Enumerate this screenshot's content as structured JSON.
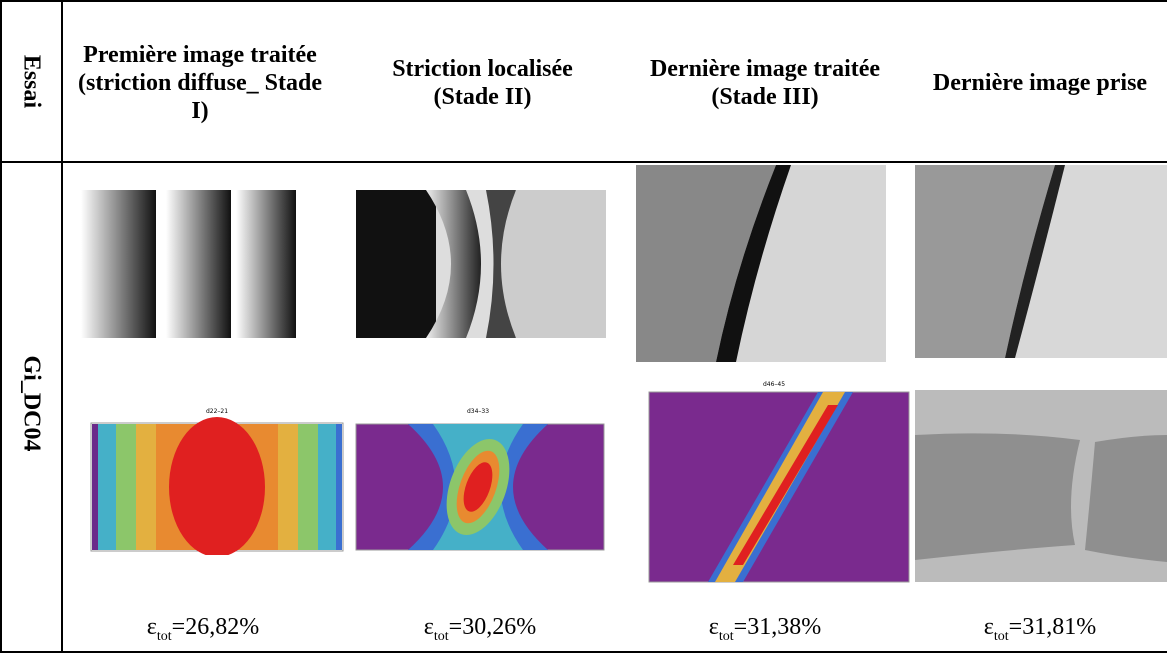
{
  "table": {
    "header": {
      "row_label": "Essai",
      "columns": [
        "Première image traitée (striction diffuse_ Stade I)",
        "Striction localisée (Stade II)",
        "Dernière image traitée (Stade III)",
        "Dernière image prise"
      ]
    },
    "row": {
      "label": "Gi_DC04",
      "plot_titles": [
        "d22–21",
        "d34–33",
        "d46–45"
      ],
      "strains": [
        {
          "symbol": "ε",
          "sub": "tot",
          "value": "=26,82%"
        },
        {
          "symbol": "ε",
          "sub": "tot",
          "value": "=30,26%"
        },
        {
          "symbol": "ε",
          "sub": "tot",
          "value": "=31,38%"
        },
        {
          "symbol": "ε",
          "sub": "tot",
          "value": "=31,81%"
        }
      ]
    }
  }
}
